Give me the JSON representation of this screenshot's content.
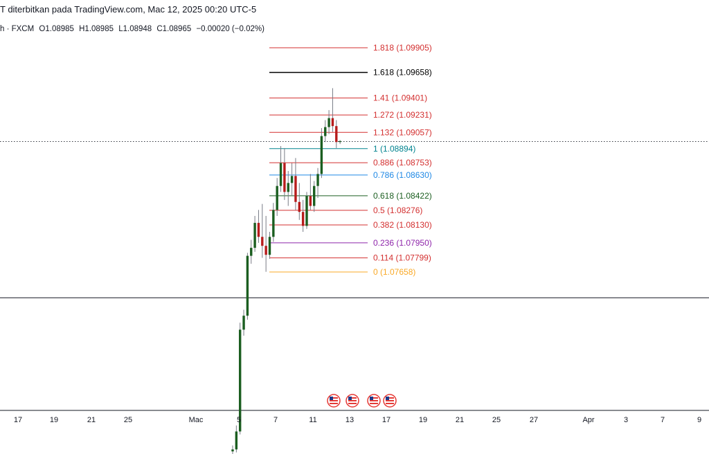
{
  "header": {
    "published_text": "T diterbitkan pada TradingView.com, Mac 12, 2025 00:20 UTC-5"
  },
  "ohlc": {
    "symbol_suffix": "h · FXCM",
    "open": "O1.08985",
    "high": "H1.08985",
    "low": "L1.08948",
    "close": "C1.08965",
    "change": "−0.00020 (−0.02%)"
  },
  "colors": {
    "up_candle": "#1b5e20",
    "down_candle": "#b71c1c",
    "wick": "#787b86",
    "grid_line": "#131722",
    "event_flag": "#e53935"
  },
  "chart_data": {
    "type": "candlestick",
    "title": "",
    "xlabel": "",
    "ylabel": "",
    "x_ticks": [
      "17",
      "19",
      "21",
      "25",
      "Mac",
      "5",
      "7",
      "11",
      "13",
      "17",
      "19",
      "21",
      "25",
      "27",
      "Apr",
      "3",
      "7",
      "9"
    ],
    "fib_levels": [
      {
        "ratio": "1.818",
        "price": 1.09905,
        "label": "1.818 (1.09905)",
        "color": "#d32f2f"
      },
      {
        "ratio": "1.618",
        "price": 1.09658,
        "label": "1.618 (1.09658)",
        "color": "#000000"
      },
      {
        "ratio": "1.41",
        "price": 1.09401,
        "label": "1.41 (1.09401)",
        "color": "#d32f2f"
      },
      {
        "ratio": "1.272",
        "price": 1.09231,
        "label": "1.272 (1.09231)",
        "color": "#d32f2f"
      },
      {
        "ratio": "1.132",
        "price": 1.09057,
        "label": "1.132 (1.09057)",
        "color": "#d32f2f"
      },
      {
        "ratio": "1",
        "price": 1.08894,
        "label": "1 (1.08894)",
        "color": "#00838f"
      },
      {
        "ratio": "0.886",
        "price": 1.08753,
        "label": "0.886 (1.08753)",
        "color": "#d32f2f"
      },
      {
        "ratio": "0.786",
        "price": 1.0863,
        "label": "0.786 (1.08630)",
        "color": "#1e88e5"
      },
      {
        "ratio": "0.618",
        "price": 1.08422,
        "label": "0.618 (1.08422)",
        "color": "#1b5e20"
      },
      {
        "ratio": "0.5",
        "price": 1.08276,
        "label": "0.5 (1.08276)",
        "color": "#d32f2f"
      },
      {
        "ratio": "0.382",
        "price": 1.0813,
        "label": "0.382 (1.08130)",
        "color": "#d32f2f"
      },
      {
        "ratio": "0.236",
        "price": 1.0795,
        "label": "0.236 (1.07950)",
        "color": "#8e24aa"
      },
      {
        "ratio": "0.114",
        "price": 1.07799,
        "label": "0.114 (1.07799)",
        "color": "#d32f2f"
      },
      {
        "ratio": "0",
        "price": 1.07658,
        "label": "0 (1.07658)",
        "color": "#f9a825"
      }
    ],
    "current_price": 1.08965,
    "horizontal_line_price": 1.074,
    "y_range": [
      1.0578,
      1.1
    ],
    "candles": [
      {
        "o": 1.0586,
        "h": 1.0592,
        "l": 1.0582,
        "c": 1.0588
      },
      {
        "o": 1.0588,
        "h": 1.0612,
        "l": 1.0585,
        "c": 1.0606
      },
      {
        "o": 1.0606,
        "h": 1.0715,
        "l": 1.0603,
        "c": 1.0708
      },
      {
        "o": 1.0708,
        "h": 1.0728,
        "l": 1.0702,
        "c": 1.0722
      },
      {
        "o": 1.0722,
        "h": 1.0785,
        "l": 1.0718,
        "c": 1.0782
      },
      {
        "o": 1.0782,
        "h": 1.0798,
        "l": 1.0774,
        "c": 1.079
      },
      {
        "o": 1.079,
        "h": 1.0822,
        "l": 1.0786,
        "c": 1.0815
      },
      {
        "o": 1.0815,
        "h": 1.0828,
        "l": 1.0795,
        "c": 1.0801
      },
      {
        "o": 1.0801,
        "h": 1.0834,
        "l": 1.078,
        "c": 1.0792
      },
      {
        "o": 1.0792,
        "h": 1.0822,
        "l": 1.0766,
        "c": 1.0783
      },
      {
        "o": 1.0783,
        "h": 1.0806,
        "l": 1.0779,
        "c": 1.0801
      },
      {
        "o": 1.0801,
        "h": 1.0835,
        "l": 1.0796,
        "c": 1.0828
      },
      {
        "o": 1.0828,
        "h": 1.086,
        "l": 1.0822,
        "c": 1.0852
      },
      {
        "o": 1.0852,
        "h": 1.0892,
        "l": 1.0846,
        "c": 1.0875
      },
      {
        "o": 1.0875,
        "h": 1.089,
        "l": 1.0838,
        "c": 1.0846
      },
      {
        "o": 1.0846,
        "h": 1.0867,
        "l": 1.0832,
        "c": 1.0855
      },
      {
        "o": 1.0855,
        "h": 1.0875,
        "l": 1.0842,
        "c": 1.0862
      },
      {
        "o": 1.0862,
        "h": 1.088,
        "l": 1.0828,
        "c": 1.0836
      },
      {
        "o": 1.0836,
        "h": 1.0855,
        "l": 1.0818,
        "c": 1.0826
      },
      {
        "o": 1.0826,
        "h": 1.0838,
        "l": 1.0806,
        "c": 1.0812
      },
      {
        "o": 1.0812,
        "h": 1.0846,
        "l": 1.0809,
        "c": 1.0842
      },
      {
        "o": 1.0842,
        "h": 1.0864,
        "l": 1.0828,
        "c": 1.0832
      },
      {
        "o": 1.0832,
        "h": 1.0857,
        "l": 1.0826,
        "c": 1.0852
      },
      {
        "o": 1.0852,
        "h": 1.087,
        "l": 1.084,
        "c": 1.0864
      },
      {
        "o": 1.0864,
        "h": 1.091,
        "l": 1.086,
        "c": 1.0902
      },
      {
        "o": 1.0902,
        "h": 1.0918,
        "l": 1.0896,
        "c": 1.0911
      },
      {
        "o": 1.0911,
        "h": 1.0928,
        "l": 1.0904,
        "c": 1.092
      },
      {
        "o": 1.092,
        "h": 1.095,
        "l": 1.0906,
        "c": 1.0912
      },
      {
        "o": 1.0912,
        "h": 1.0918,
        "l": 1.089,
        "c": 1.0896
      },
      {
        "o": 1.0896,
        "h": 1.0898,
        "l": 1.0894,
        "c": 1.0897
      }
    ]
  }
}
